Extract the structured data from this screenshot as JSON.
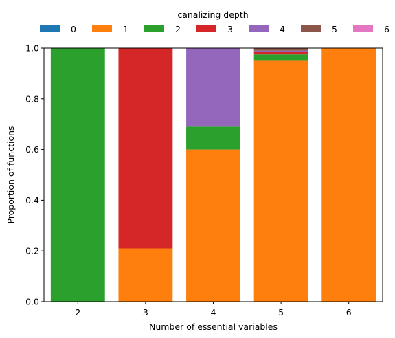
{
  "chart_data": {
    "type": "bar",
    "stacked": true,
    "categories": [
      "2",
      "3",
      "4",
      "5",
      "6"
    ],
    "series": [
      {
        "name": "0",
        "color": "#1f77b4",
        "values": [
          0,
          0,
          0,
          0,
          0
        ]
      },
      {
        "name": "1",
        "color": "#ff7f0e",
        "values": [
          0,
          0.21,
          0.6,
          0.95,
          1.0
        ]
      },
      {
        "name": "2",
        "color": "#2ca02c",
        "values": [
          1.0,
          0,
          0.09,
          0.025,
          0
        ]
      },
      {
        "name": "3",
        "color": "#d62728",
        "values": [
          0,
          0.79,
          0,
          0.01,
          0
        ]
      },
      {
        "name": "4",
        "color": "#9467bd",
        "values": [
          0,
          0,
          0.31,
          0.005,
          0
        ]
      },
      {
        "name": "5",
        "color": "#8c564b",
        "values": [
          0,
          0,
          0,
          0.01,
          0
        ]
      },
      {
        "name": "6",
        "color": "#e377c2",
        "values": [
          0,
          0,
          0,
          0,
          0
        ]
      }
    ],
    "xlabel": "Number of essential variables",
    "ylabel": "Proportion of functions",
    "ylim": [
      0,
      1.0
    ],
    "yticks": [
      "0.0",
      "0.2",
      "0.4",
      "0.6",
      "0.8",
      "1.0"
    ],
    "legend_title": "canalizing depth",
    "legend_position": "top",
    "grid": false
  }
}
